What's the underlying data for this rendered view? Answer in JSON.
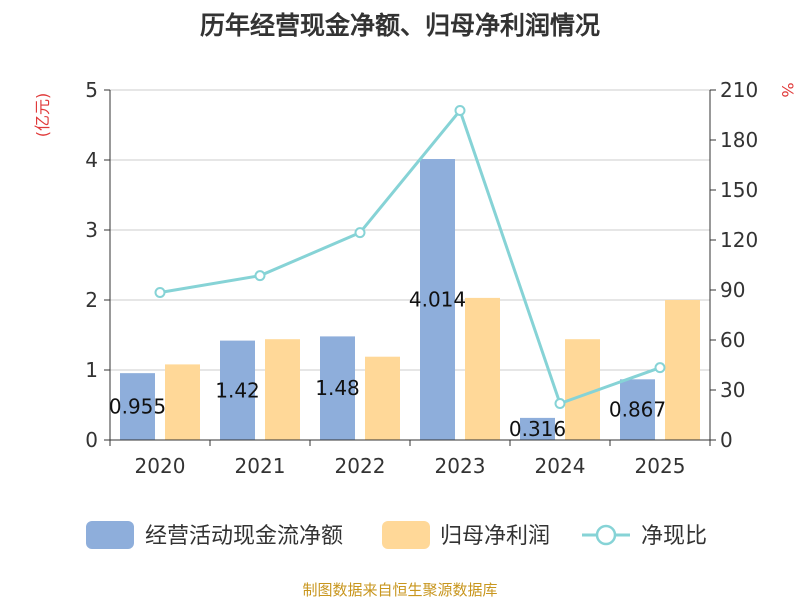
{
  "chart_data": {
    "type": "bar",
    "title": "历年经营现金净额、归母净利润情况",
    "categories": [
      "2020",
      "2021",
      "2022",
      "2023",
      "2024",
      "2025"
    ],
    "left_axis": {
      "unit": "(亿元)",
      "ylim": [
        0,
        5
      ],
      "ticks": [
        "0",
        "1",
        "2",
        "3",
        "4",
        "5"
      ]
    },
    "right_axis": {
      "unit": "%",
      "ylim": [
        0,
        210
      ],
      "ticks": [
        "0",
        "30",
        "60",
        "90",
        "120",
        "150",
        "180",
        "210"
      ]
    },
    "series": [
      {
        "name": "经营活动现金流净额",
        "type": "bar",
        "axis": "left",
        "color": "#8eaedb",
        "values": [
          0.955,
          1.42,
          1.48,
          4.014,
          0.316,
          0.867
        ],
        "labels": [
          "0.955",
          "1.42",
          "1.48",
          "4.014",
          "0.316",
          "0.867"
        ]
      },
      {
        "name": "归母净利润",
        "type": "bar",
        "axis": "left",
        "color": "#ffd898",
        "values": [
          1.08,
          1.44,
          1.19,
          2.03,
          1.44,
          2.0
        ]
      },
      {
        "name": "净现比",
        "type": "line",
        "axis": "right",
        "color": "#86d3d6",
        "values": [
          88.5,
          98.6,
          124.4,
          197.7,
          21.9,
          43.4
        ]
      }
    ],
    "grid": true,
    "legend": "bottom"
  },
  "source": "制图数据来自恒生聚源数据库"
}
